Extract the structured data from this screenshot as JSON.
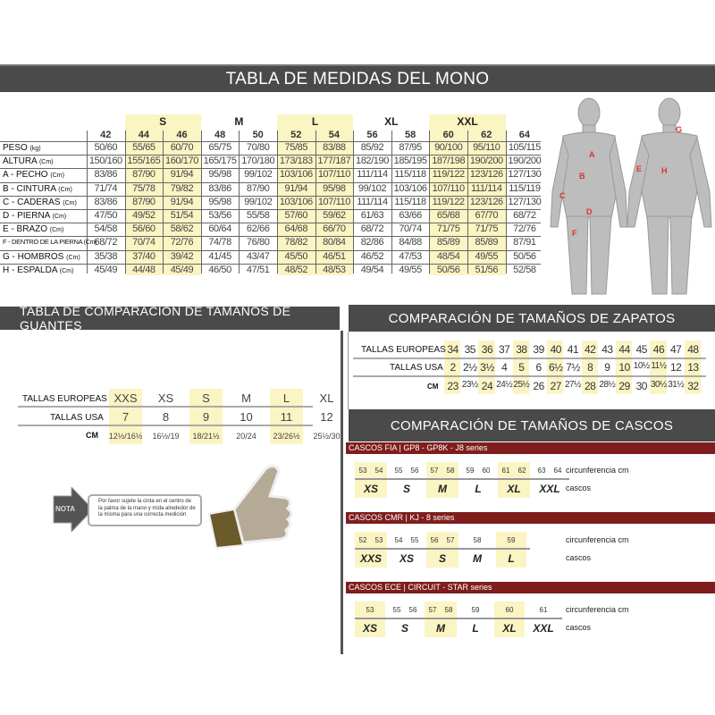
{
  "title": "TABLA DE MEDIDAS DEL MONO",
  "suit": {
    "groups": [
      {
        "label": "S",
        "cols": [
          "44",
          "46"
        ]
      },
      {
        "label": "M",
        "cols": [
          "48",
          "50"
        ]
      },
      {
        "label": "L",
        "cols": [
          "52",
          "54"
        ]
      },
      {
        "label": "XL",
        "cols": [
          "56",
          "58"
        ]
      },
      {
        "label": "XXL",
        "cols": [
          "60",
          "62"
        ]
      }
    ],
    "sizes": [
      "42",
      "44",
      "46",
      "48",
      "50",
      "52",
      "54",
      "56",
      "58",
      "60",
      "62",
      "64"
    ],
    "highlight": [
      "44",
      "46",
      "52",
      "54",
      "60",
      "62"
    ],
    "rows": [
      {
        "label": "PESO",
        "unit": "(kg)",
        "values": [
          "50/60",
          "55/65",
          "60/70",
          "65/75",
          "70/80",
          "75/85",
          "83/88",
          "85/92",
          "87/95",
          "90/100",
          "95/110",
          "105/115"
        ]
      },
      {
        "label": "ALTURA",
        "unit": "(Cm)",
        "values": [
          "150/160",
          "155/165",
          "160/170",
          "165/175",
          "170/180",
          "173/183",
          "177/187",
          "182/190",
          "185/195",
          "187/198",
          "190/200",
          "190/200"
        ]
      },
      {
        "label": "A - PECHO",
        "unit": "(Cm)",
        "values": [
          "83/86",
          "87/90",
          "91/94",
          "95/98",
          "99/102",
          "103/106",
          "107/110",
          "111/114",
          "115/118",
          "119/122",
          "123/126",
          "127/130"
        ]
      },
      {
        "label": "B - CINTURA",
        "unit": "(Cm)",
        "values": [
          "71/74",
          "75/78",
          "79/82",
          "83/86",
          "87/90",
          "91/94",
          "95/98",
          "99/102",
          "103/106",
          "107/110",
          "111/114",
          "115/119"
        ]
      },
      {
        "label": "C - CADERAS",
        "unit": "(Cm)",
        "values": [
          "83/86",
          "87/90",
          "91/94",
          "95/98",
          "99/102",
          "103/106",
          "107/110",
          "111/114",
          "115/118",
          "119/122",
          "123/126",
          "127/130"
        ]
      },
      {
        "label": "D - PIERNA",
        "unit": "(Cm)",
        "values": [
          "47/50",
          "49/52",
          "51/54",
          "53/56",
          "55/58",
          "57/60",
          "59/62",
          "61/63",
          "63/66",
          "65/68",
          "67/70",
          "68/72"
        ]
      },
      {
        "label": "E - BRAZO",
        "unit": "(Cm)",
        "values": [
          "54/58",
          "56/60",
          "58/62",
          "60/64",
          "62/66",
          "64/68",
          "66/70",
          "68/72",
          "70/74",
          "71/75",
          "71/75",
          "72/76"
        ]
      },
      {
        "label": "F - DENTRO DE LA PIERNA",
        "unit": "(Cm)",
        "values": [
          "68/72",
          "70/74",
          "72/76",
          "74/78",
          "76/80",
          "78/82",
          "80/84",
          "82/86",
          "84/88",
          "85/89",
          "85/89",
          "87/91"
        ]
      },
      {
        "label": "G - HOMBROS",
        "unit": "(Cm)",
        "values": [
          "35/38",
          "37/40",
          "39/42",
          "41/45",
          "43/47",
          "45/50",
          "46/51",
          "46/52",
          "47/53",
          "48/54",
          "49/55",
          "50/56"
        ]
      },
      {
        "label": "H - ESPALDA",
        "unit": "(Cm)",
        "values": [
          "45/49",
          "44/48",
          "45/49",
          "46/50",
          "47/51",
          "48/52",
          "48/53",
          "49/54",
          "49/55",
          "50/56",
          "51/56",
          "52/58"
        ]
      }
    ],
    "body_labels": [
      "A",
      "B",
      "C",
      "D",
      "E",
      "F",
      "G",
      "H"
    ]
  },
  "gloves": {
    "title": "TABLA DE COMPARACIÓN DE TAMAÑOS DE GUANTES",
    "row_labels": [
      "TALLAS EUROPEAS",
      "TALLAS USA",
      "CM"
    ],
    "eu": [
      "XXS",
      "XS",
      "S",
      "M",
      "L",
      "XL"
    ],
    "usa": [
      "7",
      "8",
      "9",
      "10",
      "11",
      "12"
    ],
    "cm": [
      "12½/16½",
      "16½/19",
      "18/21½",
      "20/24",
      "23/26½",
      "25½/30"
    ],
    "highlight": [
      0,
      2,
      4
    ],
    "note_tag": "NOTA",
    "note": "Por favor sujete la cinta en el centro de la palma de la mano y mida alrededor de la misma para una correcta medición"
  },
  "shoes": {
    "title": "COMPARACIÓN DE TAMAÑOS DE ZAPATOS",
    "row_labels": [
      "TALLAS EUROPEAS",
      "TALLAS USA",
      "CM"
    ],
    "eu": [
      "34",
      "35",
      "36",
      "37",
      "38",
      "39",
      "40",
      "41",
      "42",
      "43",
      "44",
      "45",
      "46",
      "47",
      "48"
    ],
    "usa": [
      "2",
      "2½",
      "3½",
      "4",
      "5",
      "6",
      "6½",
      "7½",
      "8",
      "9",
      "10",
      "10½",
      "11½",
      "12",
      "13"
    ],
    "cm": [
      "23",
      "23½",
      "24",
      "24½",
      "25½",
      "26",
      "27",
      "27½",
      "28",
      "28½",
      "29",
      "30",
      "30½",
      "31½",
      "32"
    ]
  },
  "helmets": {
    "title": "COMPARACIÓN DE TAMAÑOS DE CASCOS",
    "cm_label": "circunferencia cm",
    "size_label": "cascos",
    "tables": [
      {
        "name": "CASCOS FIA",
        "series": "|  GP8 - GP8K - J8 series",
        "groups": [
          {
            "size": "XS",
            "cm": [
              "53",
              "54"
            ],
            "hl": true
          },
          {
            "size": "S",
            "cm": [
              "55",
              "56"
            ],
            "hl": false
          },
          {
            "size": "M",
            "cm": [
              "57",
              "58"
            ],
            "hl": true
          },
          {
            "size": "L",
            "cm": [
              "59",
              "60"
            ],
            "hl": false
          },
          {
            "size": "XL",
            "cm": [
              "61",
              "62"
            ],
            "hl": true
          },
          {
            "size": "XXL",
            "cm": [
              "63",
              "64"
            ],
            "hl": false
          }
        ]
      },
      {
        "name": "CASCOS CMR",
        "series": "|  KJ - 8 series",
        "groups": [
          {
            "size": "XXS",
            "cm": [
              "52",
              "53"
            ],
            "hl": true
          },
          {
            "size": "XS",
            "cm": [
              "54",
              "55"
            ],
            "hl": false
          },
          {
            "size": "S",
            "cm": [
              "56",
              "57"
            ],
            "hl": true
          },
          {
            "size": "M",
            "cm": [
              "58"
            ],
            "hl": false
          },
          {
            "size": "L",
            "cm": [
              "59"
            ],
            "hl": true
          }
        ]
      },
      {
        "name": "CASCOS ECE",
        "series": "|  CIRCUIT - STAR series",
        "groups": [
          {
            "size": "XS",
            "cm": [
              "53"
            ],
            "hl": true
          },
          {
            "size": "S",
            "cm": [
              "55",
              "56"
            ],
            "hl": false
          },
          {
            "size": "M",
            "cm": [
              "57",
              "58"
            ],
            "hl": true
          },
          {
            "size": "L",
            "cm": [
              "59"
            ],
            "hl": false
          },
          {
            "size": "XL",
            "cm": [
              "60"
            ],
            "hl": true
          },
          {
            "size": "XXL",
            "cm": [
              "61"
            ],
            "hl": false
          }
        ]
      }
    ]
  },
  "colors": {
    "header": "#4a4a4a",
    "highlight": "#fbf4c3",
    "helmet_bar": "#7f1d1d",
    "body_label": "#d33"
  }
}
